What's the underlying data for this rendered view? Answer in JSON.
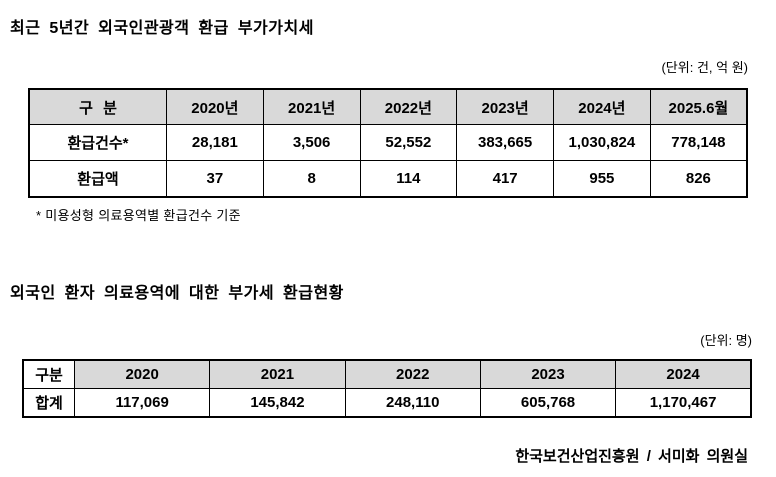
{
  "section1": {
    "title": "최근 5년간 외국인관광객 환급 부가가치세",
    "unit": "(단위: 건, 억 원)",
    "footnote": "* 미용성형 의료용역별 환급건수 기준",
    "table": {
      "headers": [
        "구 분",
        "2020년",
        "2021년",
        "2022년",
        "2023년",
        "2024년",
        "2025.6월"
      ],
      "rows": [
        {
          "label": "환급건수*",
          "values": [
            "28,181",
            "3,506",
            "52,552",
            "383,665",
            "1,030,824",
            "778,148"
          ]
        },
        {
          "label": "환급액",
          "values": [
            "37",
            "8",
            "114",
            "417",
            "955",
            "826"
          ]
        }
      ]
    }
  },
  "section2": {
    "title": "외국인 환자 의료용역에 대한 부가세 환급현황",
    "unit": "(단위: 명)",
    "table": {
      "headers": [
        "구분",
        "2020",
        "2021",
        "2022",
        "2023",
        "2024"
      ],
      "rows": [
        {
          "label": "합계",
          "values": [
            "117,069",
            "145,842",
            "248,110",
            "605,768",
            "1,170,467"
          ]
        }
      ]
    },
    "source": "한국보건산업진흥원 / 서미화 의원실"
  },
  "colors": {
    "header_bg": "#d9d9d9",
    "border": "#000000",
    "text": "#000000",
    "background": "#ffffff"
  }
}
